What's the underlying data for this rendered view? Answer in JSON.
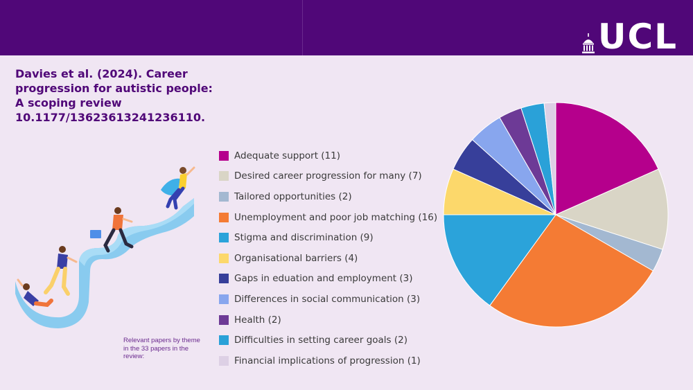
{
  "header": {
    "logo_text": "UCL"
  },
  "title_lines": [
    "Davies et al. (2024). Career",
    "progression for autistic people:",
    "A scoping review",
    "10.1177/13623613241236110."
  ],
  "caption": "Relevant papers by theme in the 33 papers in the review:",
  "illustration": {
    "icon": "career-progression-climbing-illustration"
  },
  "chart_data": {
    "type": "pie",
    "legend_position": "left",
    "slices": [
      {
        "label": "Adequate support (11)",
        "value": 11,
        "color": "#b5008c"
      },
      {
        "label": "Desired career progression for many (7)",
        "value": 7,
        "color": "#d9d5c6"
      },
      {
        "label": "Tailored opportunities (2)",
        "value": 2,
        "color": "#a3b8d1"
      },
      {
        "label": "Unemployment and poor job matching (16)",
        "value": 16,
        "color": "#f47b34"
      },
      {
        "label": "Stigma and discrimination (9)",
        "value": 9,
        "color": "#2ba3da"
      },
      {
        "label": "Organisational barriers (4)",
        "value": 4,
        "color": "#fcd86b"
      },
      {
        "label": "Gaps in eduation and employment (3)",
        "value": 3,
        "color": "#373f9a"
      },
      {
        "label": "Differences in social communication (3)",
        "value": 3,
        "color": "#88a6ee"
      },
      {
        "label": "Health (2)",
        "value": 2,
        "color": "#6d3a96"
      },
      {
        "label": "Difficulties in setting career goals (2)",
        "value": 2,
        "color": "#2aa1d8"
      },
      {
        "label": "Financial implications of progression (1)",
        "value": 1,
        "color": "#ddd0e5"
      }
    ]
  }
}
